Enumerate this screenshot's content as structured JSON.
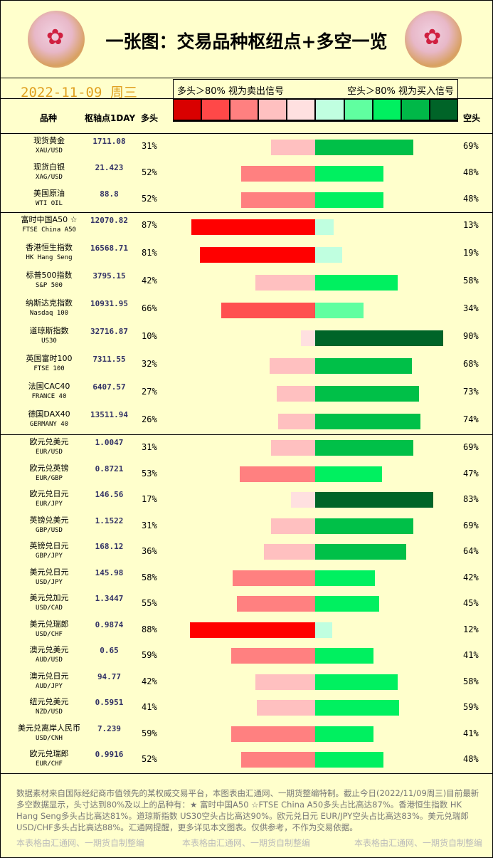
{
  "title": "一张图：交易品种枢纽点+多空一览",
  "date": "2022-11-09  周三",
  "legend": {
    "left": "多头＞80%  视为卖出信号",
    "right": "空头＞80%  视为买入信号",
    "colors": [
      "#d90000",
      "#ff4848",
      "#ff8080",
      "#ffc0c0",
      "#ffe0e0",
      "#c0ffe0",
      "#60ffa0",
      "#00f060",
      "#00b848",
      "#006428"
    ]
  },
  "headers": {
    "name": "品种",
    "pivot": "枢轴点1DAY",
    "long": "多头",
    "short": "空头"
  },
  "chart_data": {
    "type": "bar",
    "orientation": "diverging-horizontal",
    "series": [
      {
        "name": "多头"
      },
      {
        "name": "空头"
      }
    ],
    "groups": [
      [
        {
          "name": "现货黄金",
          "code": "XAU/USD",
          "pivot": "1711.08",
          "long": 31,
          "short": 69
        },
        {
          "name": "现货白银",
          "code": "XAG/USD",
          "pivot": "21.423",
          "long": 52,
          "short": 48
        },
        {
          "name": "美国原油",
          "code": "WTI OIL",
          "pivot": "88.8",
          "long": 52,
          "short": 48
        }
      ],
      [
        {
          "name": "富时中国A50 ☆",
          "code": "FTSE China A50",
          "pivot": "12070.82",
          "long": 87,
          "short": 13
        },
        {
          "name": "香港恒生指数",
          "code": "HK Hang Seng",
          "pivot": "16568.71",
          "long": 81,
          "short": 19
        },
        {
          "name": "标普500指数",
          "code": "S&P 500",
          "pivot": "3795.15",
          "long": 42,
          "short": 58
        },
        {
          "name": "纳斯达克指数",
          "code": "Nasdaq 100",
          "pivot": "10931.95",
          "long": 66,
          "short": 34
        },
        {
          "name": "道琼斯指数",
          "code": "US30",
          "pivot": "32716.87",
          "long": 10,
          "short": 90
        },
        {
          "name": "英国富时100",
          "code": "FTSE 100",
          "pivot": "7311.55",
          "long": 32,
          "short": 68
        },
        {
          "name": "法国CAC40",
          "code": "FRANCE 40",
          "pivot": "6407.57",
          "long": 27,
          "short": 73
        },
        {
          "name": "德国DAX40",
          "code": "GERMANY 40",
          "pivot": "13511.94",
          "long": 26,
          "short": 74
        }
      ],
      [
        {
          "name": "欧元兑美元",
          "code": "EUR/USD",
          "pivot": "1.0047",
          "long": 31,
          "short": 69
        },
        {
          "name": "欧元兑英镑",
          "code": "EUR/GBP",
          "pivot": "0.8721",
          "long": 53,
          "short": 47
        },
        {
          "name": "欧元兑日元",
          "code": "EUR/JPY",
          "pivot": "146.56",
          "long": 17,
          "short": 83
        },
        {
          "name": "英镑兑美元",
          "code": "GBP/USD",
          "pivot": "1.1522",
          "long": 31,
          "short": 69
        },
        {
          "name": "英镑兑日元",
          "code": "GBP/JPY",
          "pivot": "168.12",
          "long": 36,
          "short": 64
        },
        {
          "name": "美元兑日元",
          "code": "USD/JPY",
          "pivot": "145.98",
          "long": 58,
          "short": 42
        },
        {
          "name": "美元兑加元",
          "code": "USD/CAD",
          "pivot": "1.3447",
          "long": 55,
          "short": 45
        },
        {
          "name": "美元兑瑞郎",
          "code": "USD/CHF",
          "pivot": "0.9874",
          "long": 88,
          "short": 12
        },
        {
          "name": "澳元兑美元",
          "code": "AUD/USD",
          "pivot": "0.65",
          "long": 59,
          "short": 41
        },
        {
          "name": "澳元兑日元",
          "code": "AUD/JPY",
          "pivot": "94.77",
          "long": 42,
          "short": 58
        },
        {
          "name": "纽元兑美元",
          "code": "NZD/USD",
          "pivot": "0.5951",
          "long": 41,
          "short": 59
        },
        {
          "name": "美元兑离岸人民币",
          "code": "USD/CNH",
          "pivot": "7.239",
          "long": 59,
          "short": 41
        },
        {
          "name": "欧元兑瑞郎",
          "code": "EUR/CHF",
          "pivot": "0.9916",
          "long": 52,
          "short": 48
        }
      ]
    ]
  },
  "footer": "数据素材来自国际经纪商市值领先的某权威交易平台，本图表由汇通网、一期货整编特制。截止今日(2022/11/09周三)目前最新多空数据显示，头寸达到80%及以上的品种有：★ 富时中国A50 ☆FTSE China A50多头占比高达87%。香港恒生指数 HK Hang Seng多头占比高达81%。道琼斯指数 US30空头占比高达90%。欧元兑日元 EUR/JPY空头占比高达83%。美元兑瑞郎USD/CHF多头占比高达88%。汇通网提醒，更多详见本文图表。仅供参考，不作为交易依据。",
  "watermark": "本表格由汇通网、一期货自制整编"
}
